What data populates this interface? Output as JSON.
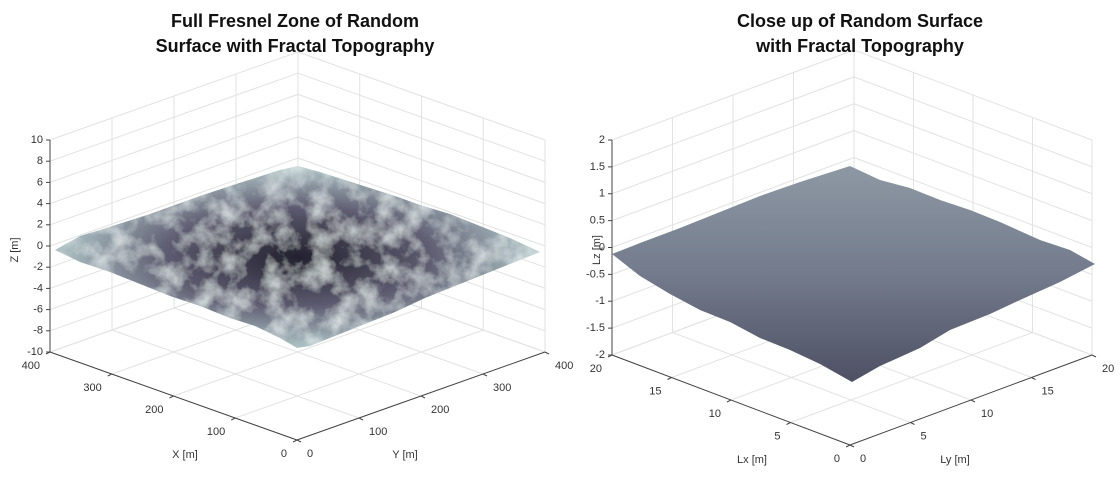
{
  "chart_data": [
    {
      "type": "surface3d",
      "title": [
        "Full Fresnel Zone of Random",
        "Surface with Fractal Topography"
      ],
      "xlabel": "X [m]",
      "ylabel": "Y [m]",
      "zlabel": "Z [m]",
      "xlim": [
        0,
        400
      ],
      "ylim": [
        0,
        400
      ],
      "zlim": [
        -10,
        10
      ],
      "xticks": [
        0,
        100,
        200,
        300,
        400
      ],
      "yticks": [
        0,
        100,
        200,
        300,
        400
      ],
      "zticks": [
        -10,
        -8,
        -6,
        -4,
        -2,
        0,
        2,
        4,
        6,
        8,
        10
      ],
      "grid": true
    },
    {
      "type": "surface3d",
      "title": [
        "Close up of Random Surface",
        "with Fractal Topography"
      ],
      "xlabel": "Lx [m]",
      "ylabel": "Ly [m]",
      "zlabel": "Lz [m]",
      "xlim": [
        0,
        20
      ],
      "ylim": [
        0,
        20
      ],
      "zlim": [
        -2,
        2
      ],
      "xticks": [
        0,
        5,
        10,
        15,
        20
      ],
      "yticks": [
        0,
        5,
        10,
        15,
        20
      ],
      "zticks": [
        -2,
        -1.5,
        -1,
        -0.5,
        0,
        0.5,
        1,
        1.5,
        2
      ],
      "grid": true
    }
  ]
}
